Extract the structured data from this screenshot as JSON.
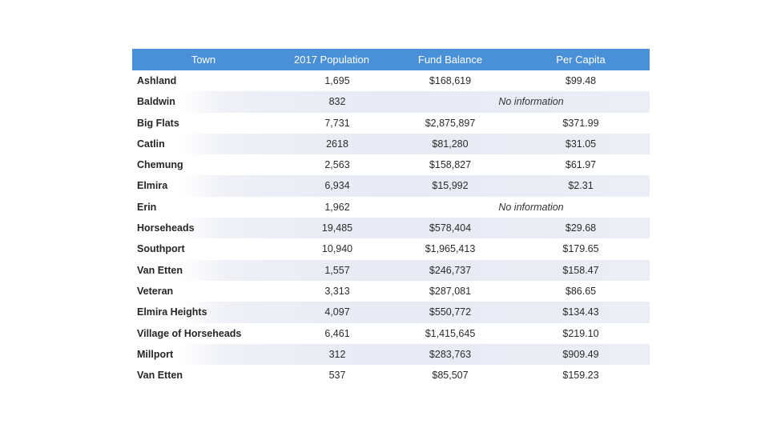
{
  "table": {
    "headers": {
      "town": "Town",
      "population": "2017 Population",
      "fund_balance": "Fund Balance",
      "per_capita": "Per Capita"
    },
    "rows": [
      {
        "town": "Ashland",
        "population": "1,695",
        "fund_balance": "$168,619",
        "per_capita": "$99.48"
      },
      {
        "town": "Baldwin",
        "population": "832",
        "no_info": "No information"
      },
      {
        "town": "Big Flats",
        "population": "7,731",
        "fund_balance": "$2,875,897",
        "per_capita": "$371.99"
      },
      {
        "town": "Catlin",
        "population": "2618",
        "fund_balance": "$81,280",
        "per_capita": "$31.05"
      },
      {
        "town": "Chemung",
        "population": "2,563",
        "fund_balance": "$158,827",
        "per_capita": "$61.97"
      },
      {
        "town": "Elmira",
        "population": "6,934",
        "fund_balance": "$15,992",
        "per_capita": "$2.31"
      },
      {
        "town": "Erin",
        "population": "1,962",
        "no_info": "No information"
      },
      {
        "town": "Horseheads",
        "population": "19,485",
        "fund_balance": "$578,404",
        "per_capita": "$29.68"
      },
      {
        "town": "Southport",
        "population": "10,940",
        "fund_balance": "$1,965,413",
        "per_capita": "$179.65"
      },
      {
        "town": "Van Etten",
        "population": "1,557",
        "fund_balance": "$246,737",
        "per_capita": "$158.47"
      },
      {
        "town": "Veteran",
        "population": "3,313",
        "fund_balance": "$287,081",
        "per_capita": "$86.65"
      },
      {
        "town": "Elmira Heights",
        "population": "4,097",
        "fund_balance": "$550,772",
        "per_capita": "$134.43"
      },
      {
        "town": "Village of Horseheads",
        "population": "6,461",
        "fund_balance": "$1,415,645",
        "per_capita": "$219.10"
      },
      {
        "town": "Millport",
        "population": "312",
        "fund_balance": "$283,763",
        "per_capita": "$909.49"
      },
      {
        "town": "Van Etten",
        "population": "537",
        "fund_balance": "$85,507",
        "per_capita": "$159.23"
      }
    ]
  }
}
